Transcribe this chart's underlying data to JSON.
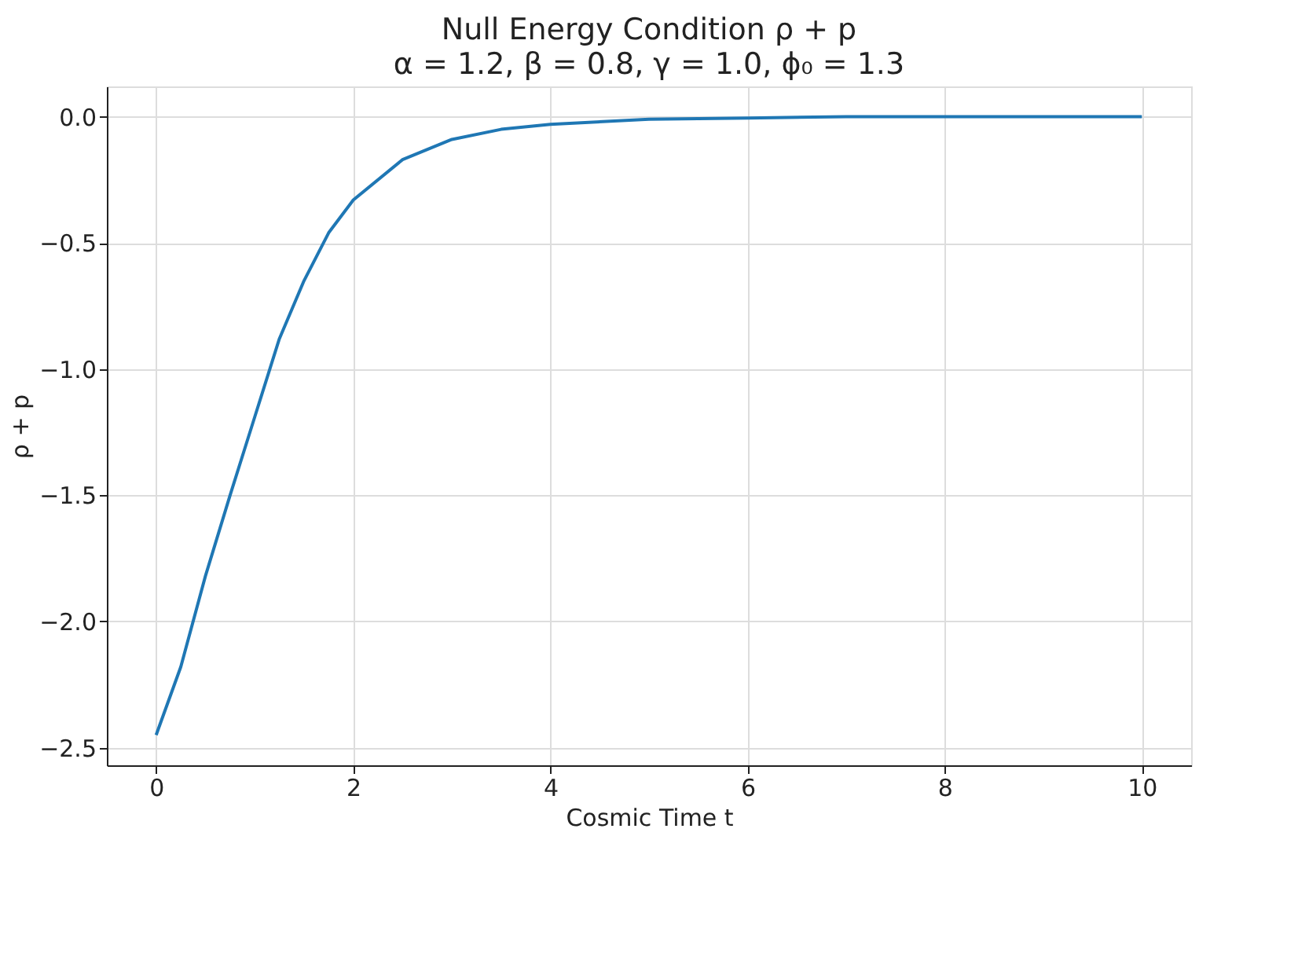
{
  "chart_data": {
    "type": "line",
    "title": "Null Energy Condition ρ + p",
    "subtitle": "α = 1.2, β = 0.8, γ = 1.0, ϕ₀ = 1.3",
    "xlabel": "Cosmic Time t",
    "ylabel": "ρ + p",
    "x": [
      0,
      0.25,
      0.5,
      0.75,
      1,
      1.25,
      1.5,
      1.75,
      2,
      2.5,
      3,
      3.5,
      4,
      5,
      6,
      7,
      8,
      9,
      10
    ],
    "series": [
      {
        "color": "#1f77b4",
        "values": [
          -2.45,
          -2.18,
          -1.82,
          -1.5,
          -1.19,
          -0.88,
          -0.65,
          -0.46,
          -0.33,
          -0.17,
          -0.09,
          -0.05,
          -0.03,
          -0.01,
          -0.005,
          0,
          0,
          0,
          0
        ]
      }
    ],
    "xlim": [
      -0.5,
      10.5
    ],
    "ylim": [
      -2.57,
      0.12
    ],
    "xticks": [
      0,
      2,
      4,
      6,
      8,
      10
    ],
    "yticks": [
      {
        "value": -2.5,
        "label": "−2.5"
      },
      {
        "value": -2.0,
        "label": "−2.0"
      },
      {
        "value": -1.5,
        "label": "−1.5"
      },
      {
        "value": -1.0,
        "label": "−1.0"
      },
      {
        "value": -0.5,
        "label": "−0.5"
      },
      {
        "value": 0.0,
        "label": "0.0"
      }
    ],
    "grid": true,
    "legend": false,
    "marker": "none",
    "line_style": "solid"
  }
}
